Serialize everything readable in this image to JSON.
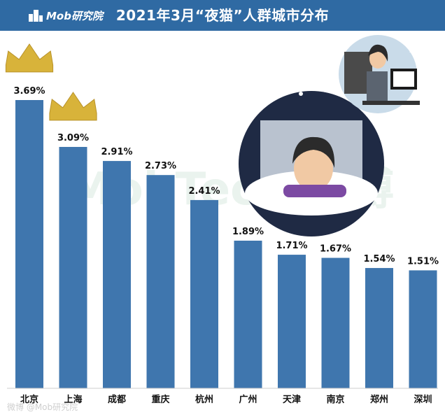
{
  "header": {
    "logo_text": "Mob研究院",
    "title": "2021年3月“夜猫”人群城市分布"
  },
  "watermark": "MobTech 袤博",
  "footer_watermark": "微博 @Mob研究院",
  "colors": {
    "header": "#2f6aa3",
    "bar": "#3f76ae",
    "crown": "#d8b33a"
  },
  "chart_data": {
    "type": "bar",
    "categories": [
      "北京",
      "上海",
      "成都",
      "重庆",
      "杭州",
      "广州",
      "天津",
      "南京",
      "郑州",
      "深圳"
    ],
    "values": [
      3.69,
      3.09,
      2.91,
      2.73,
      2.41,
      1.89,
      1.71,
      1.67,
      1.54,
      1.51
    ],
    "value_labels": [
      "3.69%",
      "3.09%",
      "2.91%",
      "2.73%",
      "2.41%",
      "1.89%",
      "1.71%",
      "1.67%",
      "1.54%",
      "1.51%"
    ],
    "title": "2021年3月“夜猫”人群城市分布",
    "xlabel": "",
    "ylabel": "",
    "ylim": [
      0,
      3.69
    ],
    "grid": false
  }
}
